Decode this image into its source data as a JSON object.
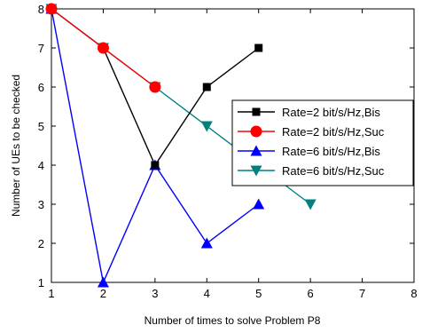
{
  "chart_data": {
    "type": "line",
    "title": "",
    "xlabel": "Number of times to solve Problem P8",
    "ylabel": "Number of UEs to be checked",
    "xlim": [
      1,
      8
    ],
    "ylim": [
      1,
      8
    ],
    "xticks": [
      1,
      2,
      3,
      4,
      5,
      6,
      7,
      8
    ],
    "yticks": [
      1,
      2,
      3,
      4,
      5,
      6,
      7,
      8
    ],
    "grid": false,
    "legend_position": "right",
    "series": [
      {
        "name": "Rate=2 bit/s/Hz,Bis",
        "color": "#000000",
        "marker": "square",
        "x": [
          1,
          2,
          3,
          4,
          5
        ],
        "y": [
          8,
          7,
          4,
          6,
          7
        ]
      },
      {
        "name": "Rate=2 bit/s/Hz,Suc",
        "color": "#ff0000",
        "marker": "circle",
        "x": [
          1,
          2,
          3
        ],
        "y": [
          8,
          7,
          6
        ]
      },
      {
        "name": "Rate=6 bit/s/Hz,Bis",
        "color": "#0000ff",
        "marker": "triangle-up",
        "x": [
          1,
          2,
          3,
          4,
          5
        ],
        "y": [
          8,
          1,
          4,
          2,
          3
        ]
      },
      {
        "name": "Rate=6 bit/s/Hz,Suc",
        "color": "#008080",
        "marker": "triangle-down",
        "x": [
          1,
          2,
          3,
          4,
          5,
          6
        ],
        "y": [
          8,
          7,
          6,
          5,
          4,
          3
        ]
      }
    ]
  }
}
